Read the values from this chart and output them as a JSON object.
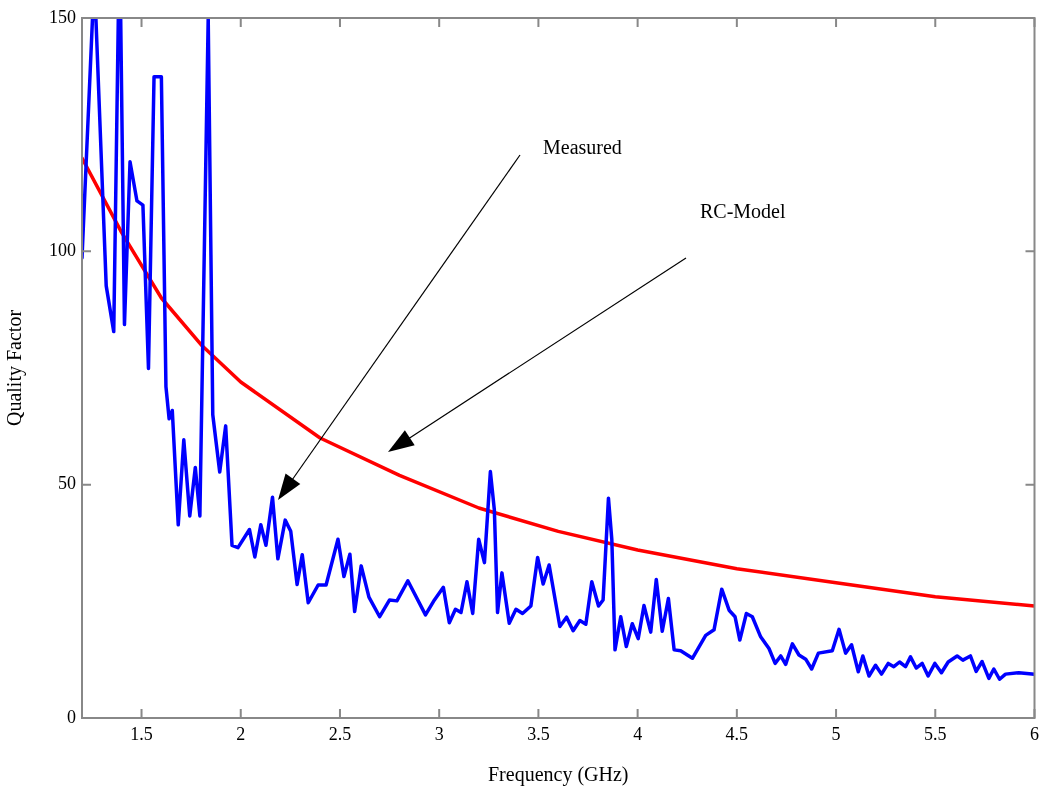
{
  "chart_data": {
    "type": "line",
    "xlabel": "Frequency (GHz)",
    "ylabel": "Quality Factor",
    "xlim": [
      1.2,
      6
    ],
    "xticks": [
      1.5,
      2,
      2.5,
      3,
      3.5,
      4,
      4.5,
      5,
      5.5,
      6
    ],
    "ylim": [
      0,
      150
    ],
    "yticks": [
      0,
      50,
      100,
      150
    ],
    "grid": false,
    "legend": false,
    "marker": "none",
    "line_style": "solid",
    "annotations": [
      "Measured",
      "RC-Model"
    ],
    "series": [
      {
        "color": "#0000ff",
        "x": [
          1.2,
          1.253,
          1.27,
          1.322,
          1.36,
          1.383,
          1.395,
          1.414,
          1.442,
          1.477,
          1.507,
          1.535,
          1.563,
          1.6,
          1.623,
          1.639,
          1.655,
          1.685,
          1.713,
          1.743,
          1.771,
          1.794,
          1.836,
          1.859,
          1.894,
          1.924,
          1.956,
          1.986,
          2.044,
          2.071,
          2.101,
          2.127,
          2.16,
          2.187,
          2.224,
          2.252,
          2.284,
          2.31,
          2.34,
          2.39,
          2.43,
          2.49,
          2.52,
          2.55,
          2.574,
          2.607,
          2.646,
          2.7,
          2.75,
          2.787,
          2.842,
          2.931,
          2.976,
          3.021,
          3.051,
          3.082,
          3.11,
          3.14,
          3.169,
          3.199,
          3.228,
          3.258,
          3.278,
          3.294,
          3.316,
          3.353,
          3.387,
          3.42,
          3.462,
          3.496,
          3.524,
          3.554,
          3.608,
          3.642,
          3.675,
          3.709,
          3.739,
          3.769,
          3.803,
          3.826,
          3.853,
          3.87,
          3.886,
          3.915,
          3.943,
          3.973,
          4.003,
          4.032,
          4.066,
          4.094,
          4.124,
          4.155,
          4.184,
          4.217,
          4.276,
          4.343,
          4.385,
          4.424,
          4.461,
          4.491,
          4.515,
          4.548,
          4.578,
          4.62,
          4.662,
          4.693,
          4.721,
          4.746,
          4.78,
          4.813,
          4.847,
          4.877,
          4.911,
          4.981,
          5.015,
          5.048,
          5.078,
          5.112,
          5.135,
          5.166,
          5.199,
          5.229,
          5.263,
          5.291,
          5.32,
          5.35,
          5.375,
          5.404,
          5.434,
          5.464,
          5.498,
          5.531,
          5.565,
          5.61,
          5.639,
          5.677,
          5.706,
          5.736,
          5.77,
          5.795,
          5.824,
          5.854,
          5.921,
          6.0
        ],
        "values": [
          98.6,
          150,
          150,
          92.6,
          82.8,
          150,
          150,
          84.3,
          119.2,
          110.8,
          109.9,
          74.9,
          137.4,
          137.4,
          71,
          64.1,
          65.9,
          41.4,
          59.6,
          43.3,
          53.7,
          43.3,
          150,
          65,
          52.7,
          62.6,
          37,
          36.5,
          40.4,
          34.5,
          41.4,
          37,
          47.3,
          34.1,
          42.4,
          40,
          28.6,
          35,
          24.7,
          28.5,
          28.5,
          38.3,
          30.3,
          35.1,
          22.8,
          32.6,
          25.9,
          21.7,
          25.3,
          25.1,
          29.4,
          22.1,
          25.3,
          28,
          20.4,
          23.3,
          22.6,
          29.2,
          22.4,
          38.3,
          33.3,
          52.8,
          44.6,
          22.6,
          31.1,
          20.3,
          23.3,
          22.4,
          24,
          34.4,
          28.7,
          32.8,
          19.6,
          21.6,
          18.7,
          20.9,
          20.1,
          29.2,
          24,
          25.3,
          47.1,
          38.2,
          14.6,
          21.7,
          15.3,
          20.2,
          17,
          24.1,
          18.4,
          29.7,
          18.6,
          25.6,
          14.6,
          14.4,
          12.8,
          17.7,
          18.9,
          27.6,
          23.1,
          21.7,
          16.7,
          22.4,
          21.7,
          17.4,
          14.9,
          11.7,
          13.3,
          11.5,
          15.9,
          13.5,
          12.6,
          10.5,
          13.9,
          14.4,
          19,
          13.9,
          15.7,
          9.9,
          13.3,
          9,
          11.3,
          9.4,
          11.7,
          11,
          12,
          11,
          13.1,
          10.7,
          11.7,
          9,
          11.7,
          9.7,
          12,
          13.3,
          12.4,
          13.3,
          10,
          12.1,
          8.5,
          10.5,
          8.3,
          9.4,
          9.7,
          9.4
        ]
      },
      {
        "color": "#ff0000",
        "x": [
          1.2,
          1.4,
          1.6,
          1.8,
          2,
          2.4,
          2.8,
          3.2,
          3.6,
          4,
          4.5,
          5,
          5.5,
          6
        ],
        "values": [
          120,
          104,
          90,
          80,
          72,
          60,
          52,
          45,
          40,
          36,
          32,
          29,
          26,
          24
        ]
      }
    ]
  }
}
